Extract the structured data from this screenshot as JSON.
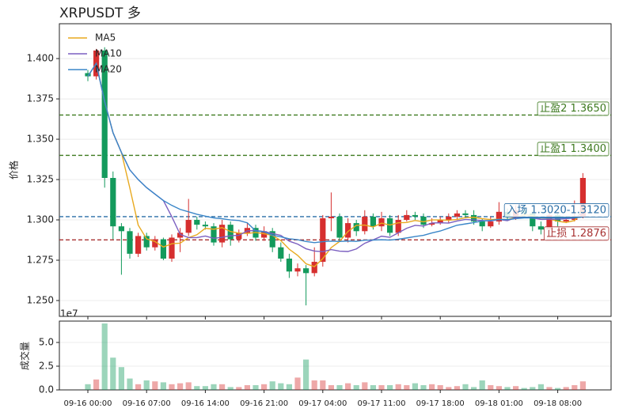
{
  "chart_data": [
    {
      "type": "candlestick",
      "title": "XRPUSDT  多",
      "ylabel": "价格",
      "open": [
        1.391,
        1.389,
        1.405,
        1.326,
        1.296,
        1.293,
        1.279,
        1.29,
        1.283,
        1.288,
        1.276,
        1.289,
        1.292,
        1.3,
        1.297,
        1.296,
        1.286,
        1.297,
        1.288,
        1.292,
        1.295,
        1.289,
        1.293,
        1.283,
        1.276,
        1.268,
        1.27,
        1.267,
        1.274,
        1.301,
        1.302,
        1.289,
        1.298,
        1.293,
        1.302,
        1.296,
        1.301,
        1.292,
        1.3,
        1.303,
        1.302,
        1.297,
        1.298,
        1.3,
        1.302,
        1.304,
        1.303,
        1.299,
        1.296,
        1.299,
        1.305,
        1.302,
        1.306,
        1.304,
        1.296,
        1.294,
        1.303,
        1.299,
        1.3,
        1.302
      ],
      "high": [
        1.393,
        1.406,
        1.407,
        1.33,
        1.298,
        1.295,
        1.292,
        1.292,
        1.29,
        1.289,
        1.291,
        1.295,
        1.313,
        1.302,
        1.299,
        1.298,
        1.3,
        1.299,
        1.294,
        1.298,
        1.297,
        1.296,
        1.295,
        1.286,
        1.279,
        1.273,
        1.272,
        1.283,
        1.303,
        1.317,
        1.304,
        1.301,
        1.3,
        1.306,
        1.304,
        1.305,
        1.303,
        1.303,
        1.306,
        1.305,
        1.304,
        1.301,
        1.302,
        1.304,
        1.306,
        1.306,
        1.306,
        1.301,
        1.302,
        1.311,
        1.307,
        1.309,
        1.308,
        1.306,
        1.299,
        1.305,
        1.304,
        1.302,
        1.312,
        1.329
      ],
      "low": [
        1.386,
        1.387,
        1.32,
        1.288,
        1.266,
        1.276,
        1.277,
        1.281,
        1.281,
        1.275,
        1.274,
        1.28,
        1.29,
        1.294,
        1.294,
        1.284,
        1.283,
        1.284,
        1.286,
        1.29,
        1.287,
        1.287,
        1.28,
        1.274,
        1.264,
        1.265,
        1.247,
        1.265,
        1.271,
        1.293,
        1.287,
        1.286,
        1.29,
        1.291,
        1.294,
        1.293,
        1.29,
        1.29,
        1.299,
        1.3,
        1.295,
        1.296,
        1.297,
        1.298,
        1.3,
        1.301,
        1.297,
        1.293,
        1.295,
        1.297,
        1.3,
        1.3,
        1.302,
        1.293,
        1.291,
        1.293,
        1.296,
        1.298,
        1.299,
        1.301
      ],
      "close": [
        1.389,
        1.405,
        1.326,
        1.296,
        1.293,
        1.279,
        1.29,
        1.283,
        1.288,
        1.276,
        1.289,
        1.292,
        1.3,
        1.297,
        1.296,
        1.286,
        1.297,
        1.288,
        1.292,
        1.295,
        1.289,
        1.293,
        1.283,
        1.276,
        1.268,
        1.27,
        1.267,
        1.274,
        1.301,
        1.302,
        1.289,
        1.298,
        1.293,
        1.302,
        1.296,
        1.301,
        1.292,
        1.3,
        1.303,
        1.302,
        1.297,
        1.298,
        1.3,
        1.302,
        1.304,
        1.303,
        1.299,
        1.296,
        1.299,
        1.305,
        1.302,
        1.306,
        1.304,
        1.296,
        1.294,
        1.303,
        1.299,
        1.3,
        1.302,
        1.326
      ],
      "up_color": "#d62f2f",
      "down_color": "#139a5c",
      "lines": [
        {
          "name": "MA5",
          "color": "#e8a91f",
          "values": [
            1.389,
            1.397,
            1.3733,
            1.354,
            1.3418,
            1.3198,
            1.2968,
            1.2882,
            1.2866,
            1.2832,
            1.2852,
            1.2856,
            1.289,
            1.2908,
            1.2948,
            1.2942,
            1.2952,
            1.2928,
            1.2918,
            1.2916,
            1.2922,
            1.2914,
            1.2904,
            1.2872,
            1.2818,
            1.278,
            1.2728,
            1.271,
            1.276,
            1.2828,
            1.2866,
            1.2928,
            1.2966,
            1.2968,
            1.2956,
            1.298,
            1.2968,
            1.2982,
            1.2984,
            1.2996,
            1.2988,
            1.3,
            1.3,
            1.2998,
            1.3002,
            1.3014,
            1.3016,
            1.3008,
            1.3002,
            1.3004,
            1.3002,
            1.3016,
            1.3032,
            1.3026,
            1.3004,
            1.3006,
            1.2992,
            1.2984,
            1.2996,
            1.306
          ]
        },
        {
          "name": "MA10",
          "color": "#7b5fc0",
          "values": [
            1.389,
            1.397,
            1.3733,
            1.354,
            1.3418,
            1.331,
            1.325,
            1.32,
            1.316,
            1.312,
            1.302,
            1.291,
            1.289,
            1.289,
            1.29,
            1.2886,
            1.2892,
            1.2902,
            1.2904,
            1.2932,
            1.2934,
            1.2928,
            1.2916,
            1.2904,
            1.2868,
            1.285,
            1.2821,
            1.2807,
            1.2803,
            1.2816,
            1.2806,
            1.2804,
            1.282,
            1.2855,
            1.2876,
            1.2899,
            1.2892,
            1.292,
            1.2948,
            1.2966,
            1.2962,
            1.2981,
            1.2982,
            1.298,
            1.2993,
            1.3003,
            1.2999,
            1.2996,
            1.2993,
            1.3003,
            1.2995,
            1.3015,
            1.3016,
            1.3012,
            1.3003,
            1.3004,
            1.3004,
            1.3008,
            1.3011,
            1.3046
          ]
        },
        {
          "name": "MA20",
          "color": "#3a86c8",
          "values": [
            1.389,
            1.397,
            1.3733,
            1.354,
            1.3418,
            1.331,
            1.325,
            1.32,
            1.316,
            1.312,
            1.309,
            1.3065,
            1.305,
            1.3035,
            1.3023,
            1.3012,
            1.3007,
            1.3,
            1.2996,
            1.2982,
            1.2932,
            1.2926,
            1.2905,
            1.2895,
            1.2883,
            1.2877,
            1.2866,
            1.2859,
            1.2865,
            1.2868,
            1.2866,
            1.2869,
            1.2867,
            1.2874,
            1.2875,
            1.2877,
            1.2875,
            1.288,
            1.2888,
            1.2897,
            1.2904,
            1.2919,
            1.2931,
            1.2949,
            1.2967,
            1.2975,
            1.2983,
            1.2993,
            1.2997,
            1.3003,
            1.3002,
            1.3008,
            1.3012,
            1.3012,
            1.3012,
            1.3013,
            1.3012,
            1.3012,
            1.3013,
            1.3018
          ]
        }
      ],
      "hlines": [
        {
          "label": "止盈2 1.3650",
          "value": 1.365,
          "color": "#3d7a1f"
        },
        {
          "label": "止盈1 1.3400",
          "value": 1.34,
          "color": "#3d7a1f"
        },
        {
          "label": "入场 1.3020-1.3120",
          "value": 1.302,
          "color": "#2a6ea6"
        },
        {
          "label": "止损 1.2876",
          "value": 1.2876,
          "color": "#a83232"
        }
      ],
      "ylim": [
        1.2402,
        1.4216
      ],
      "yticks": [
        {
          "value": 1.25,
          "label": "1.250"
        },
        {
          "value": 1.275,
          "label": "1.275"
        },
        {
          "value": 1.3,
          "label": "1.300"
        },
        {
          "value": 1.325,
          "label": "1.325"
        },
        {
          "value": 1.35,
          "label": "1.350"
        },
        {
          "value": 1.375,
          "label": "1.375"
        },
        {
          "value": 1.4,
          "label": "1.400"
        }
      ],
      "grid": true,
      "legend": "upper left"
    },
    {
      "type": "bar",
      "ylabel": "成交量",
      "offset_label": "1e7",
      "x": [
        "09-16 00:00",
        null,
        null,
        null,
        null,
        null,
        null,
        "09-16 07:00",
        null,
        null,
        null,
        null,
        null,
        null,
        "09-16 14:00",
        null,
        null,
        null,
        null,
        null,
        null,
        "09-16 21:00",
        null,
        null,
        null,
        null,
        null,
        null,
        "09-17 04:00",
        null,
        null,
        null,
        null,
        null,
        null,
        "09-17 11:00",
        null,
        null,
        null,
        null,
        null,
        null,
        "09-17 18:00",
        null,
        null,
        null,
        null,
        null,
        null,
        "09-18 01:00",
        null,
        null,
        null,
        null,
        null,
        null,
        "09-18 08:00",
        null,
        null,
        null
      ],
      "values": [
        0.6,
        1.1,
        7.0,
        3.4,
        2.4,
        1.2,
        0.6,
        1.0,
        0.9,
        0.8,
        0.6,
        0.7,
        0.8,
        0.4,
        0.4,
        0.6,
        0.6,
        0.3,
        0.3,
        0.5,
        0.5,
        0.6,
        0.9,
        0.7,
        0.6,
        1.3,
        3.2,
        1.0,
        1.0,
        0.5,
        0.5,
        0.7,
        0.5,
        0.8,
        0.5,
        0.5,
        0.5,
        0.6,
        0.5,
        0.7,
        0.5,
        0.6,
        0.5,
        0.3,
        0.4,
        0.6,
        0.3,
        1.0,
        0.5,
        0.4,
        0.3,
        0.4,
        0.2,
        0.3,
        0.6,
        0.3,
        0.2,
        0.3,
        0.5,
        0.9
      ],
      "ylim": [
        0,
        7.25
      ],
      "yticks": [
        {
          "value": 0,
          "label": "0.0"
        },
        2.5,
        {
          "value": 5,
          "label": "5.0"
        }
      ],
      "grid": true
    }
  ]
}
